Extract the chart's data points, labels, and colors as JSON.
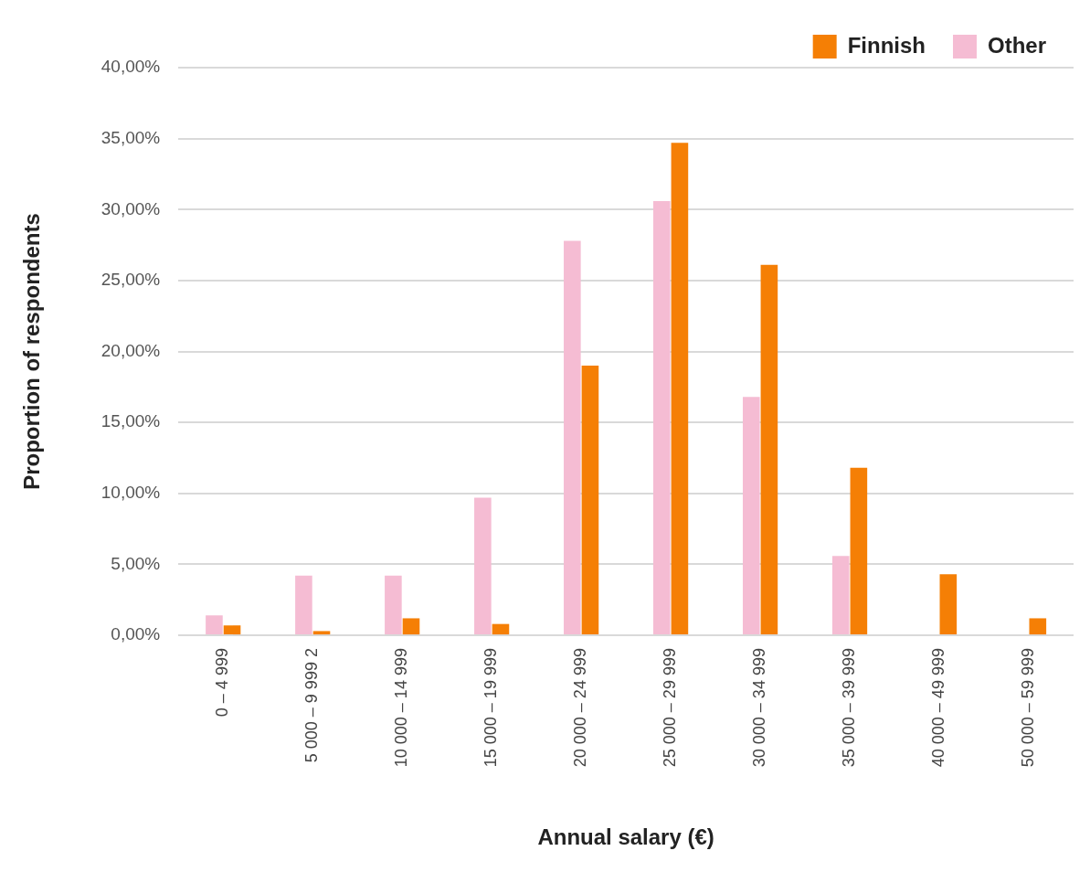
{
  "chart_data": {
    "type": "bar",
    "xlabel": "Annual salary (€)",
    "ylabel": "Proportion of respondents",
    "categories": [
      "0 – 4 999",
      "5 000 – 9 999 2",
      "10 000 – 14 999",
      "15 000 – 19 999",
      "20 000 – 24 999",
      "25 000 – 29 999",
      "30 000 – 34 999",
      "35 000 – 39 999",
      "40 000 – 49 999",
      "50 000 – 59 999"
    ],
    "series": [
      {
        "name": "Other",
        "color": "#f5bcd3",
        "values": [
          1.4,
          4.2,
          4.2,
          9.7,
          27.8,
          30.6,
          16.8,
          5.6,
          0,
          0
        ]
      },
      {
        "name": "Finnish",
        "color": "#f57f05",
        "values": [
          0.7,
          0.3,
          1.2,
          0.8,
          19.0,
          34.7,
          26.1,
          11.8,
          4.3,
          1.2
        ]
      }
    ],
    "ylim": [
      0,
      40
    ],
    "yticks": [
      {
        "value": 0,
        "label": "0,00%"
      },
      {
        "value": 5,
        "label": "5,00%"
      },
      {
        "value": 10,
        "label": "10,00%"
      },
      {
        "value": 15,
        "label": "15,00%"
      },
      {
        "value": 20,
        "label": "20,00%"
      },
      {
        "value": 25,
        "label": "25,00%"
      },
      {
        "value": 30,
        "label": "30,00%"
      },
      {
        "value": 35,
        "label": "35,00%"
      },
      {
        "value": 40,
        "label": "40,00%"
      }
    ],
    "grid": "y",
    "legend": "top right"
  }
}
